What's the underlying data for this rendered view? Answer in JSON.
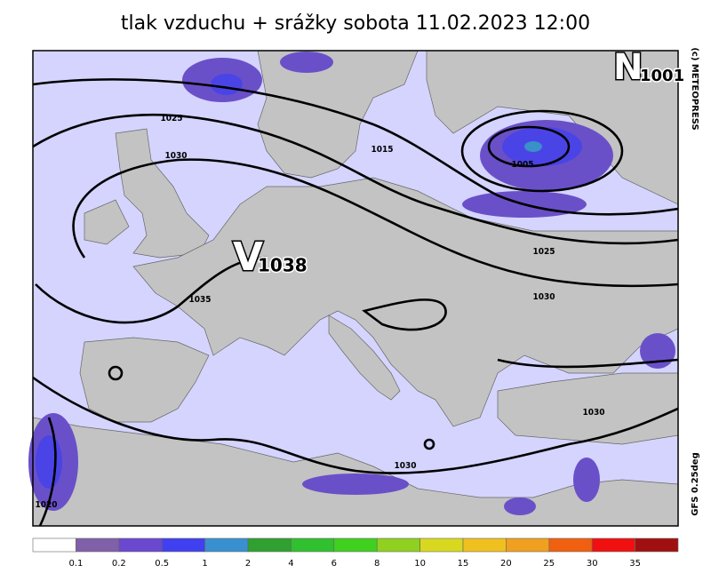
{
  "title": "tlak vzduchu + srážky  sobota 11.02.2023 12:00",
  "credits": "(c) METEOPRESS",
  "model": "GFS 0.25deg",
  "pressure_centers": [
    {
      "letter": "V",
      "value": 1038
    },
    {
      "letter": "N",
      "value": 1001
    }
  ],
  "isobar_labels": [
    1025,
    1030,
    1015,
    1005,
    1025,
    1030,
    1035,
    1030,
    1030,
    1020
  ],
  "legend": {
    "colors": [
      "#ffffff",
      "#8060a8",
      "#6a48d0",
      "#4040f0",
      "#3890d0",
      "#30a030",
      "#30c030",
      "#40d020",
      "#90d020",
      "#d8d820",
      "#f0c020",
      "#f0a020",
      "#f06010",
      "#f01010",
      "#a01010"
    ],
    "labels": [
      0.1,
      0.2,
      0.5,
      1,
      2,
      4,
      6,
      8,
      10,
      15,
      20,
      25,
      30,
      35
    ]
  }
}
